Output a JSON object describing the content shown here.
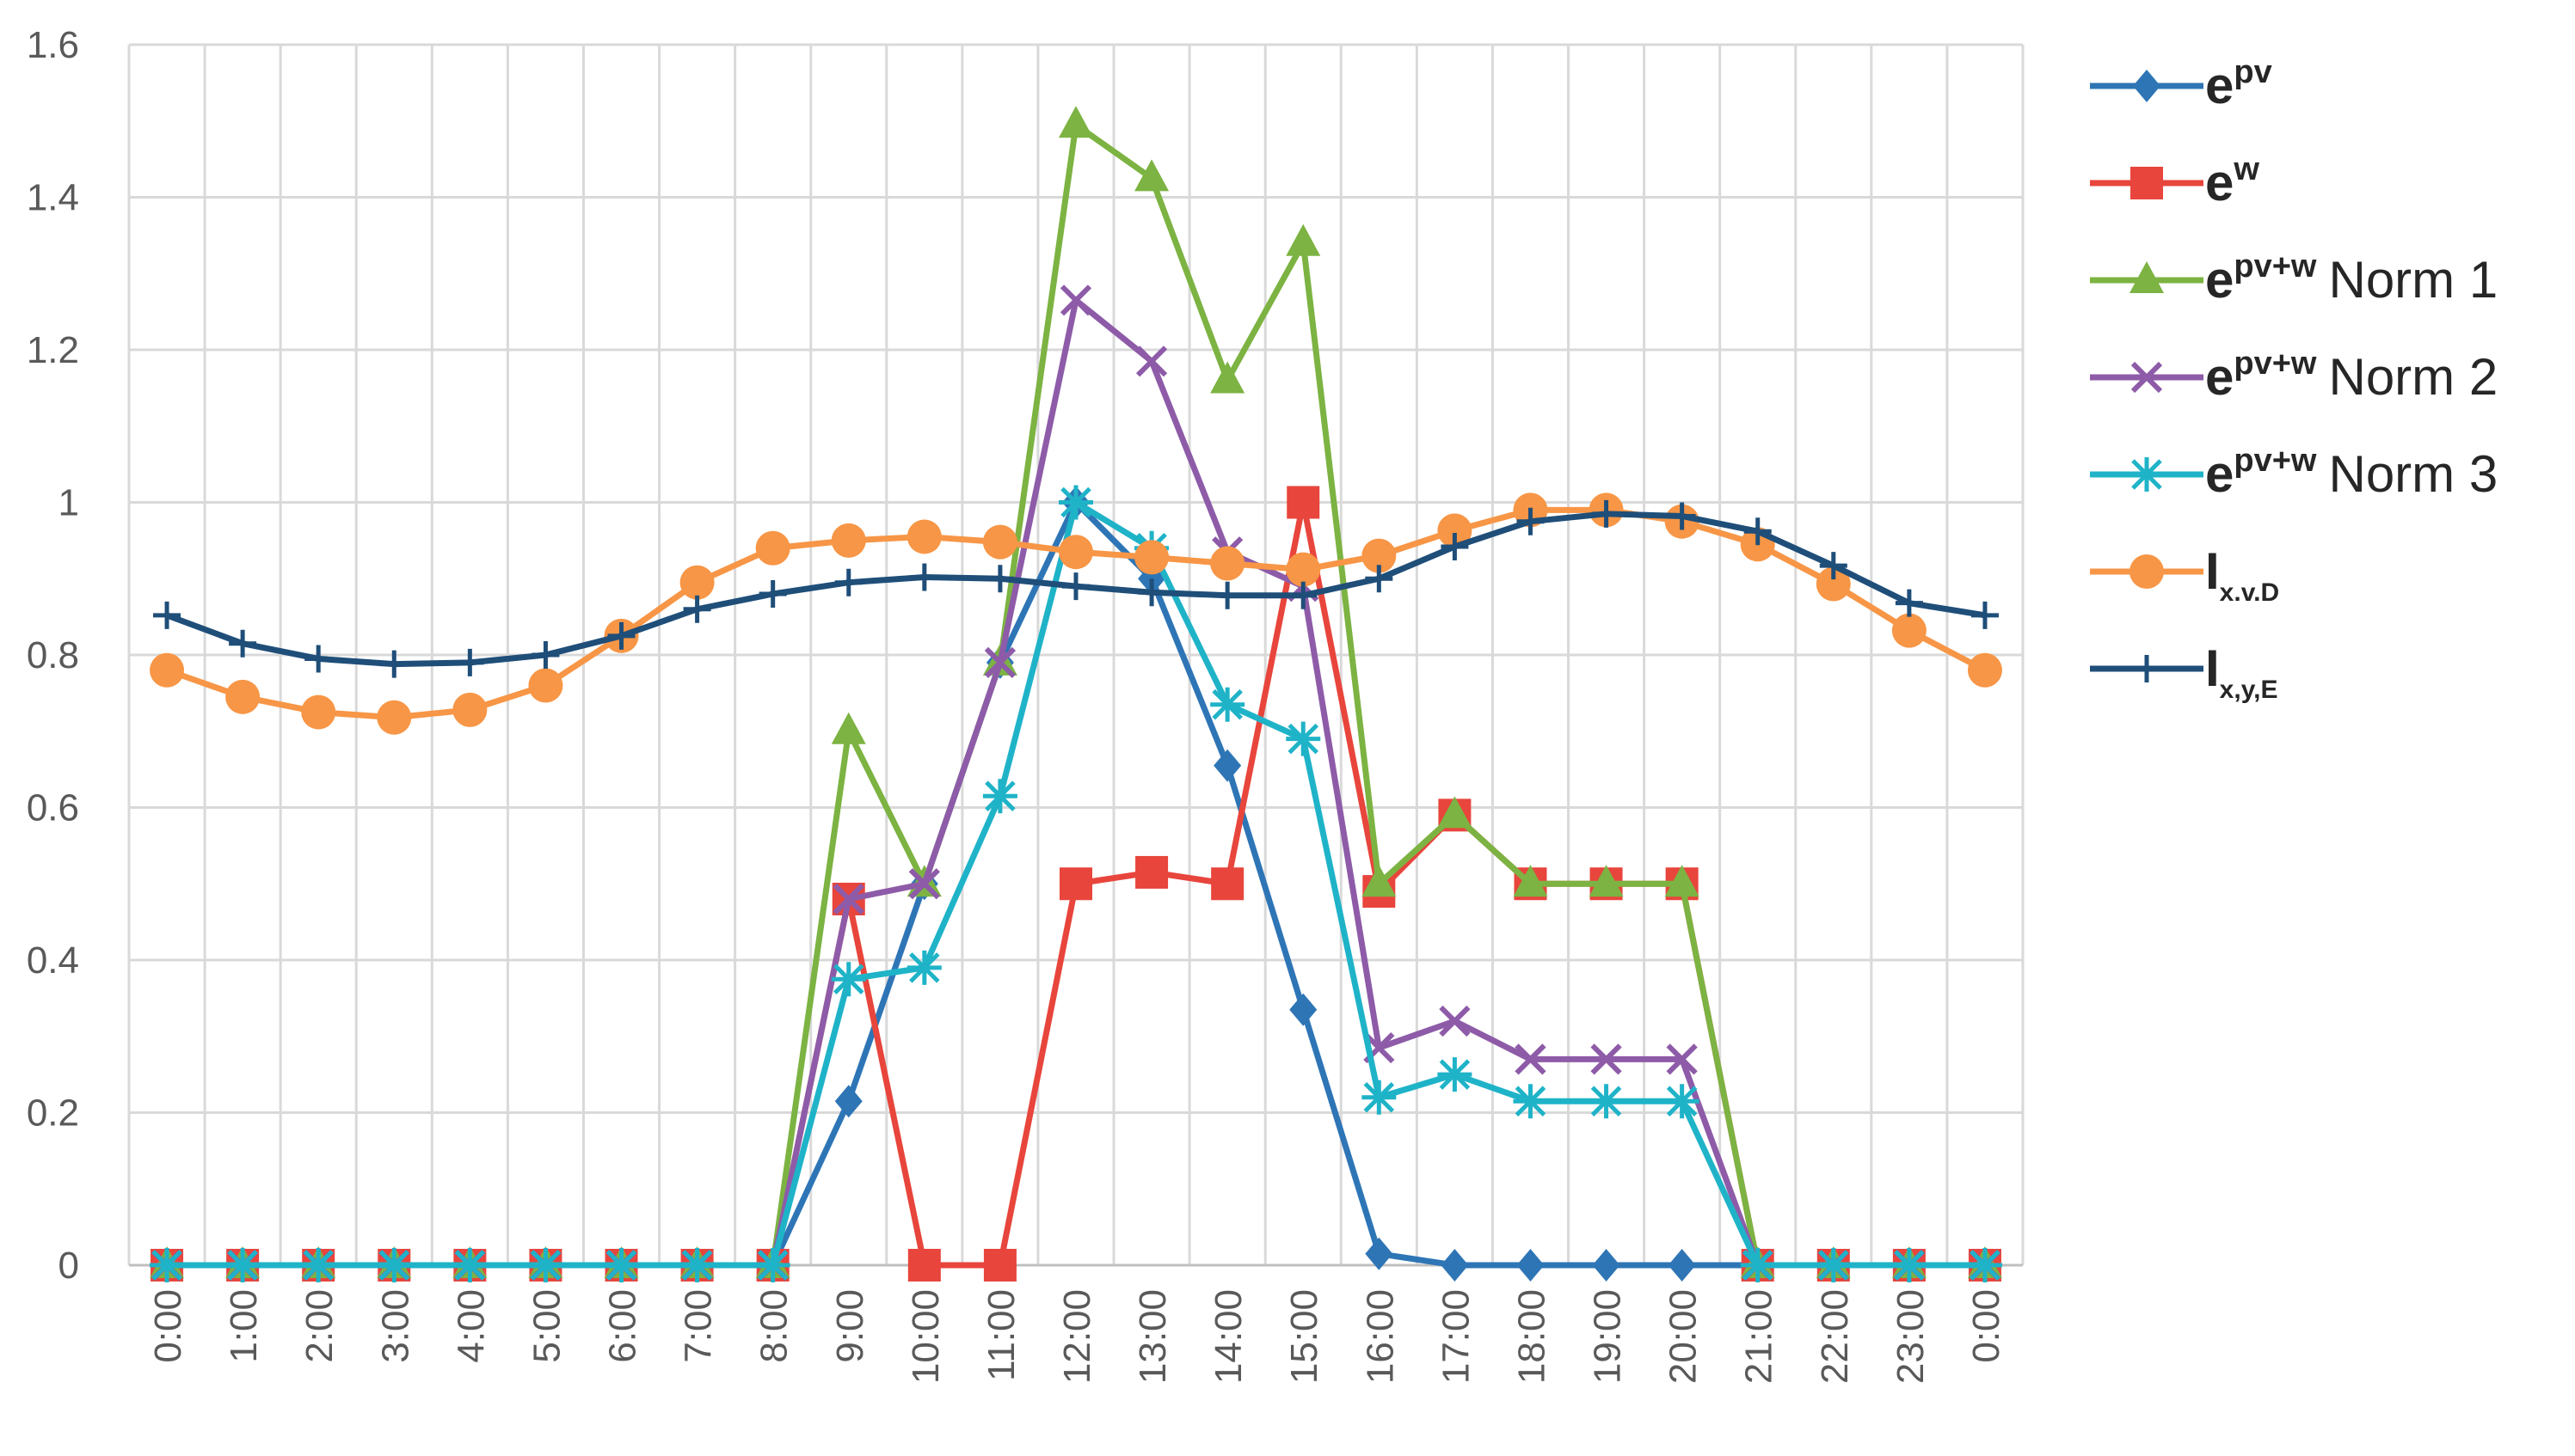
{
  "chart_data": {
    "type": "line",
    "title": "",
    "xlabel": "",
    "ylabel": "",
    "ylim": [
      0,
      1.6
    ],
    "y_ticks": [
      "0",
      "0.2",
      "0.4",
      "0.6",
      "0.8",
      "1",
      "1.2",
      "1.4",
      "1.6"
    ],
    "categories": [
      "0:00",
      "1:00",
      "2:00",
      "3:00",
      "4:00",
      "5:00",
      "6:00",
      "7:00",
      "8:00",
      "9:00",
      "10:00",
      "11:00",
      "12:00",
      "13:00",
      "14:00",
      "15:00",
      "16:00",
      "17:00",
      "18:00",
      "19:00",
      "20:00",
      "21:00",
      "22:00",
      "23:00",
      "0:00"
    ],
    "grid": true,
    "legend_position": "right",
    "series": [
      {
        "name": "e^pv",
        "label_main": "e",
        "label_sup": "pv",
        "label_sub": "",
        "label_suffix": "",
        "color": "#2e75b6",
        "marker": "diamond",
        "values": [
          0,
          0,
          0,
          0,
          0,
          0,
          0,
          0,
          0,
          0.215,
          0.5,
          0.79,
          1.0,
          0.9,
          0.655,
          0.335,
          0.015,
          0,
          0,
          0,
          0,
          0,
          0,
          0,
          0
        ]
      },
      {
        "name": "e^w",
        "label_main": "e",
        "label_sup": "w",
        "label_sub": "",
        "label_suffix": "",
        "color": "#e8453c",
        "marker": "square",
        "values": [
          0,
          0,
          0,
          0,
          0,
          0,
          0,
          0,
          0,
          0.48,
          0,
          0,
          0.5,
          0.515,
          0.5,
          1.0,
          0.49,
          0.59,
          0.5,
          0.5,
          0.5,
          0,
          0,
          0,
          0
        ]
      },
      {
        "name": "e^pv+w Norm 1",
        "label_main": "e",
        "label_sup": "pv+w",
        "label_sub": "",
        "label_suffix": "Norm 1",
        "color": "#7cb342",
        "marker": "triangle",
        "values": [
          0,
          0,
          0,
          0,
          0,
          0,
          0,
          0,
          0,
          0.7,
          0.5,
          0.79,
          1.495,
          1.425,
          1.16,
          1.34,
          0.5,
          0.59,
          0.5,
          0.5,
          0.5,
          0,
          0,
          0,
          0
        ]
      },
      {
        "name": "e^pv+w Norm 2",
        "label_main": "e",
        "label_sup": "pv+w",
        "label_sub": "",
        "label_suffix": "Norm 2",
        "color": "#8e5ba8",
        "marker": "x",
        "values": [
          0,
          0,
          0,
          0,
          0,
          0,
          0,
          0,
          0,
          0.48,
          0.5,
          0.79,
          1.265,
          1.185,
          0.935,
          0.89,
          0.285,
          0.32,
          0.27,
          0.27,
          0.27,
          0,
          0,
          0,
          0
        ]
      },
      {
        "name": "e^pv+w Norm 3",
        "label_main": "e",
        "label_sup": "pv+w",
        "label_sub": "",
        "label_suffix": "Norm 3",
        "color": "#1fb3c8",
        "marker": "star",
        "values": [
          0,
          0,
          0,
          0,
          0,
          0,
          0,
          0,
          0,
          0.375,
          0.39,
          0.615,
          1.0,
          0.94,
          0.735,
          0.69,
          0.22,
          0.25,
          0.215,
          0.215,
          0.215,
          0,
          0,
          0,
          0
        ]
      },
      {
        "name": "I_x.v.D",
        "label_main": "I",
        "label_sup": "",
        "label_sub": "x.v.D",
        "label_suffix": "",
        "color": "#f79646",
        "marker": "circle",
        "values": [
          0.78,
          0.745,
          0.725,
          0.718,
          0.728,
          0.76,
          0.825,
          0.895,
          0.94,
          0.95,
          0.955,
          0.948,
          0.935,
          0.928,
          0.92,
          0.912,
          0.93,
          0.963,
          0.99,
          0.99,
          0.975,
          0.945,
          0.893,
          0.832,
          0.78
        ]
      },
      {
        "name": "I_x,y,E",
        "label_main": "I",
        "label_sup": "",
        "label_sub": "x,y,E",
        "label_suffix": "",
        "color": "#1f4e79",
        "marker": "plus",
        "values": [
          0.852,
          0.815,
          0.795,
          0.788,
          0.79,
          0.8,
          0.825,
          0.86,
          0.88,
          0.895,
          0.902,
          0.9,
          0.89,
          0.882,
          0.878,
          0.878,
          0.9,
          0.942,
          0.975,
          0.985,
          0.982,
          0.962,
          0.917,
          0.868,
          0.852
        ]
      }
    ]
  }
}
